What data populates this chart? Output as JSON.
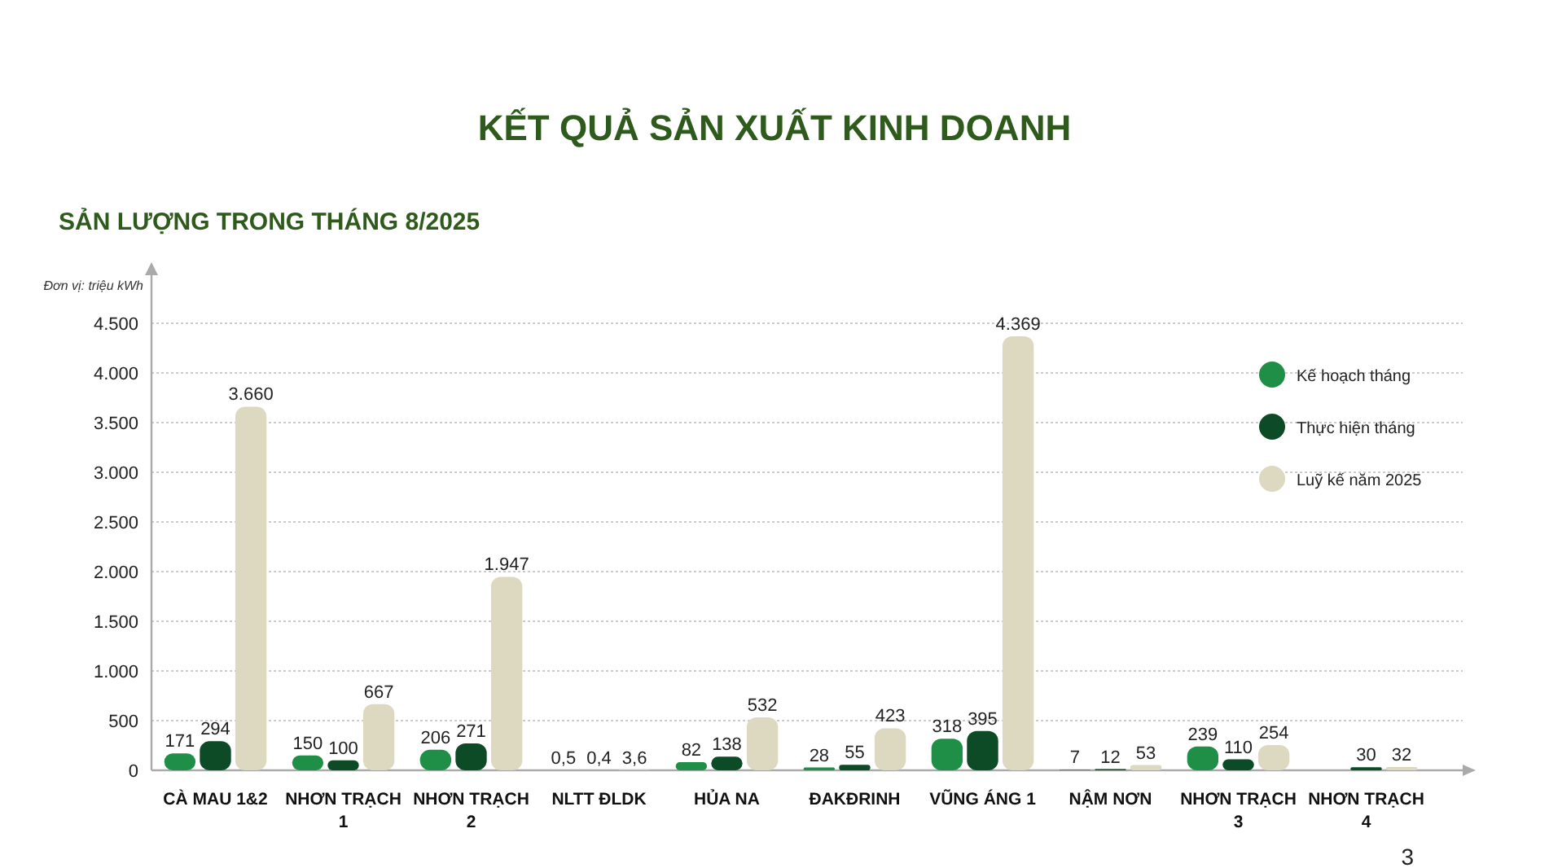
{
  "chart_data": {
    "type": "bar",
    "title": "KẾT QUẢ SẢN XUẤT KINH DOANH",
    "subtitle": "SẢN LƯỢNG TRONG THÁNG 8/2025",
    "ylabel": "Đơn vị: triệu kWh",
    "categories": [
      "CÀ MAU 1&2",
      "NHƠN TRẠCH 1",
      "NHƠN TRẠCH 2",
      "NLTT ĐLDK",
      "HỦA NA",
      "ĐAKĐRINH",
      "VŨNG ÁNG 1",
      "NẬM NƠN",
      "NHƠN TRẠCH 3",
      "NHƠN TRẠCH 4"
    ],
    "series": [
      {
        "name": "Kế hoạch tháng",
        "color": "#1f8f48",
        "values": [
          171,
          150,
          206,
          0.5,
          82,
          28,
          318,
          7,
          239,
          null
        ],
        "value_labels": [
          "171",
          "150",
          "206",
          "0,5",
          "82",
          "28",
          "318",
          "7",
          "239",
          null
        ]
      },
      {
        "name": "Thực hiện tháng",
        "color": "#0d4a26",
        "values": [
          294,
          100,
          271,
          0.4,
          138,
          55,
          395,
          12,
          110,
          30
        ],
        "value_labels": [
          "294",
          "100",
          "271",
          "0,4",
          "138",
          "55",
          "395",
          "12",
          "110",
          "30"
        ]
      },
      {
        "name": "Luỹ kế năm 2025",
        "color": "#ddd8c0",
        "values": [
          3660,
          667,
          1947,
          3.6,
          532,
          423,
          4369,
          53,
          254,
          32
        ],
        "value_labels": [
          "3.660",
          "667",
          "1.947",
          "3,6",
          "532",
          "423",
          "4.369",
          "53",
          "254",
          "32"
        ]
      }
    ],
    "ylim": [
      0,
      5000
    ],
    "yticks": [
      0,
      {
        "value": 500,
        "label": "500"
      },
      {
        "value": 1000,
        "label": "1.000"
      },
      {
        "value": 1500,
        "label": "1.500"
      },
      {
        "value": 2000,
        "label": "2.000"
      },
      {
        "value": 2500,
        "label": "2.500"
      },
      {
        "value": 3000,
        "label": "3.000"
      },
      {
        "value": 3500,
        "label": "3.500"
      },
      {
        "value": 4000,
        "label": "4.000"
      },
      {
        "value": 4500,
        "label": "4.500"
      }
    ],
    "grid": "y",
    "legend": "top right",
    "annotations": [
      "3"
    ]
  }
}
